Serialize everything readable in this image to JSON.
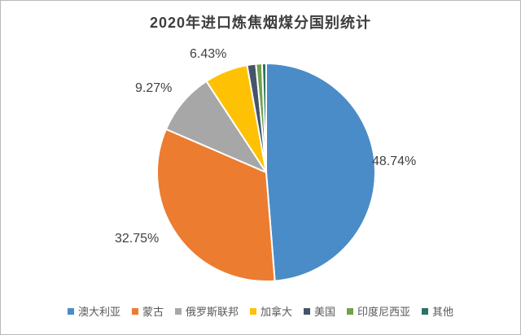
{
  "chart_data": {
    "type": "pie",
    "title": "2020年进口炼焦烟煤分国别统计",
    "legend_position": "bottom",
    "start_angle_deg": 0,
    "direction": "clockwise",
    "data_labels_format": "percent",
    "slices": [
      {
        "label": "澳大利亚",
        "value": 48.74,
        "display": "48.74%",
        "color": "#4a8cc7",
        "estimated": false
      },
      {
        "label": "蒙古",
        "value": 32.75,
        "display": "32.75%",
        "color": "#ec7c30",
        "estimated": false
      },
      {
        "label": "俄罗斯联邦",
        "value": 9.27,
        "display": "9.27%",
        "color": "#a7a7a7",
        "estimated": false
      },
      {
        "label": "加拿大",
        "value": 6.43,
        "display": "6.43%",
        "color": "#ffc104",
        "estimated": false
      },
      {
        "label": "美国",
        "value": 1.3,
        "display": "",
        "color": "#44546a",
        "estimated": true
      },
      {
        "label": "印度尼西亚",
        "value": 0.9,
        "display": "",
        "color": "#6fa24b",
        "estimated": true
      },
      {
        "label": "其他",
        "value": 0.61,
        "display": "",
        "color": "#2b7363",
        "estimated": true
      }
    ]
  }
}
